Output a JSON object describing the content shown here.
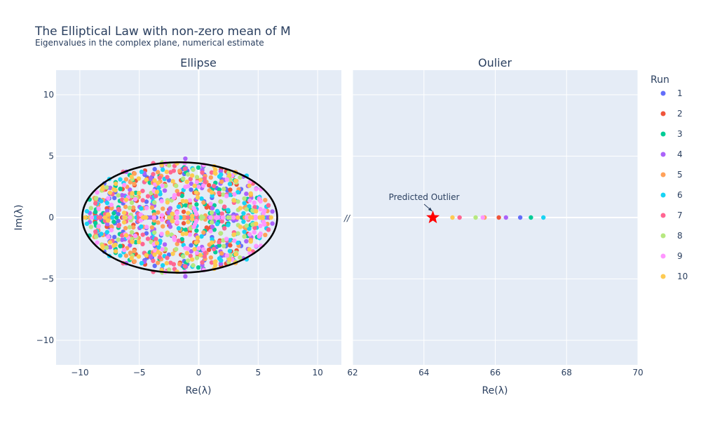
{
  "chart_data": {
    "type": "scatter",
    "title": "The Elliptical Law with non-zero mean of M",
    "subtitle": "Eigenvalues in the complex plane, numerical estimate",
    "ylabel": "Im(λ)",
    "legend": {
      "title": "Run",
      "placement": "right",
      "entries": [
        "1",
        "2",
        "3",
        "4",
        "5",
        "6",
        "7",
        "8",
        "9",
        "10"
      ]
    },
    "colors": [
      "#636efa",
      "#EF553B",
      "#00cc96",
      "#ab63fa",
      "#FFA15A",
      "#19d3f3",
      "#FF6692",
      "#B6E880",
      "#FF97FF",
      "#FECB52"
    ],
    "ylim": [
      -12,
      12
    ],
    "yticks": [
      -10,
      -5,
      0,
      5,
      10
    ],
    "panels": [
      {
        "title": "Ellipse",
        "xlabel": "Re(λ)",
        "xlim": [
          -12,
          12
        ],
        "xticks": [
          -10,
          -5,
          0,
          5,
          10
        ],
        "ellipse": {
          "center_re": -1.6,
          "center_im": 0,
          "semi_re": 8.2,
          "semi_im": 4.5,
          "color": "#000000"
        },
        "point_cloud": {
          "center_re": -1.6,
          "semi_re": 8.0,
          "semi_im": 4.5,
          "points_per_run": 95,
          "real_axis_points_per_run": 12
        }
      },
      {
        "title": "Oulier",
        "xlabel": "Re(λ)",
        "xlim": [
          62,
          70
        ],
        "xticks": [
          62,
          64,
          66,
          68,
          70
        ],
        "outliers": [
          {
            "run": "1",
            "re": 66.7,
            "im": 0
          },
          {
            "run": "2",
            "re": 66.1,
            "im": 0
          },
          {
            "run": "3",
            "re": 67.0,
            "im": 0
          },
          {
            "run": "4",
            "re": 66.3,
            "im": 0
          },
          {
            "run": "5",
            "re": 65.7,
            "im": 0
          },
          {
            "run": "6",
            "re": 67.35,
            "im": 0
          },
          {
            "run": "7",
            "re": 65.0,
            "im": 0
          },
          {
            "run": "8",
            "re": 65.45,
            "im": 0
          },
          {
            "run": "9",
            "re": 65.65,
            "im": 0
          },
          {
            "run": "10",
            "re": 64.8,
            "im": 0
          }
        ],
        "predicted": {
          "re": 64.25,
          "im": 0,
          "label": "Predicted Outlier",
          "color": "#ff0000"
        }
      }
    ],
    "axis_break_marker": "//"
  }
}
